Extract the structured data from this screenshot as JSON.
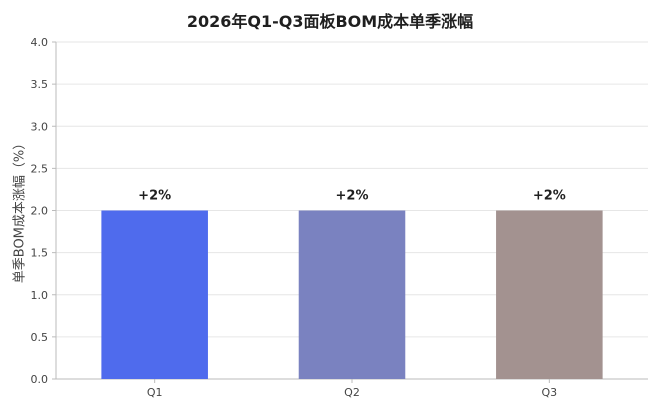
{
  "chart_data": {
    "type": "bar",
    "title": "2026年Q1-Q3面板BOM成本单季涨幅",
    "xlabel": "",
    "ylabel": "单季BOM成本涨幅（%）",
    "categories": [
      "Q1",
      "Q2",
      "Q3"
    ],
    "values": [
      2.0,
      2.0,
      2.0
    ],
    "data_labels": [
      "+2%",
      "+2%",
      "+2%"
    ],
    "colors": [
      "#4f6bed",
      "#7a82c0",
      "#a39290"
    ],
    "ylim": [
      0,
      4.0
    ],
    "yticks": [
      "0.0",
      "0.5",
      "1.0",
      "1.5",
      "2.0",
      "2.5",
      "3.0",
      "3.5",
      "4.0"
    ],
    "grid": true,
    "legend": "none"
  }
}
